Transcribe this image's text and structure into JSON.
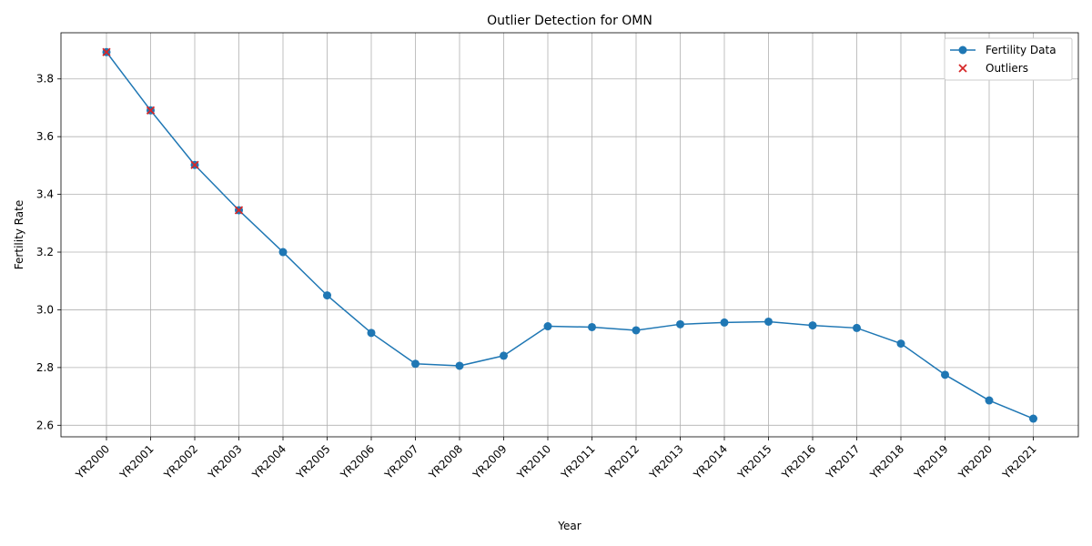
{
  "chart_data": {
    "type": "line",
    "title": "Outlier Detection for OMN",
    "xlabel": "Year",
    "ylabel": "Fertility Rate",
    "categories": [
      "YR2000",
      "YR2001",
      "YR2002",
      "YR2003",
      "YR2004",
      "YR2005",
      "YR2006",
      "YR2007",
      "YR2008",
      "YR2009",
      "YR2010",
      "YR2011",
      "YR2012",
      "YR2013",
      "YR2014",
      "YR2015",
      "YR2016",
      "YR2017",
      "YR2018",
      "YR2019",
      "YR2020",
      "YR2021"
    ],
    "ylim": [
      2.56,
      3.96
    ],
    "yticks": [
      "2.6",
      "2.8",
      "3.0",
      "3.2",
      "3.4",
      "3.6",
      "3.8"
    ],
    "grid": true,
    "legend_position": "top-right",
    "series": [
      {
        "name": "Fertility Data",
        "color": "#1f77b4",
        "marker": "circle",
        "values": [
          3.893,
          3.691,
          3.502,
          3.345,
          3.2,
          3.05,
          2.92,
          2.813,
          2.806,
          2.841,
          2.943,
          2.94,
          2.929,
          2.95,
          2.956,
          2.959,
          2.946,
          2.937,
          2.883,
          2.775,
          2.686,
          2.623
        ]
      }
    ],
    "outliers": {
      "name": "Outliers",
      "color": "#d62728",
      "marker": "x",
      "indices": [
        0,
        1,
        2,
        3
      ]
    }
  }
}
